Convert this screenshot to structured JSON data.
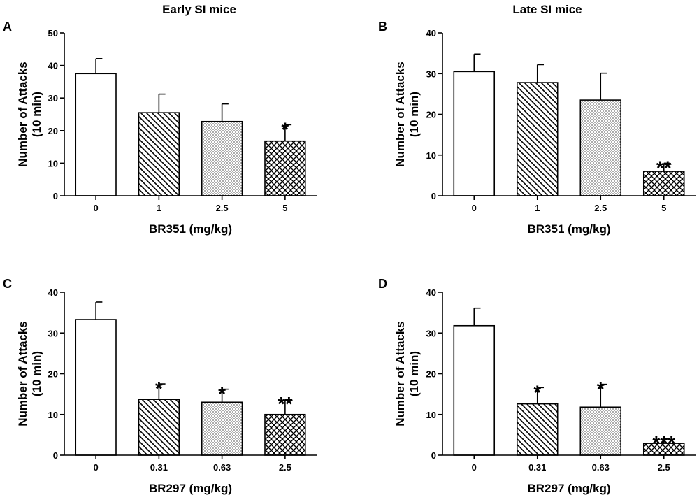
{
  "column_titles": [
    "Early SI mice",
    "Late SI mice"
  ],
  "chart_data": [
    {
      "panel": "A",
      "type": "bar",
      "ylabel_line1": "Number of Attacks",
      "ylabel_line2": "(10 min)",
      "xlabel": "BR351 (mg/kg)",
      "ylim": [
        0,
        50
      ],
      "yticks": [
        0,
        10,
        20,
        30,
        40,
        50
      ],
      "categories": [
        "0",
        "1",
        "2.5",
        "5"
      ],
      "values": [
        37.5,
        25.5,
        22.8,
        16.8
      ],
      "errors": [
        4.6,
        5.7,
        5.4,
        5.0
      ],
      "patterns": [
        "none",
        "diag",
        "dots",
        "cross"
      ],
      "significance": [
        "",
        "",
        "",
        "*"
      ]
    },
    {
      "panel": "B",
      "type": "bar",
      "ylabel_line1": "Number of Attacks",
      "ylabel_line2": "(10 min)",
      "xlabel": "BR351 (mg/kg)",
      "ylim": [
        0,
        40
      ],
      "yticks": [
        0,
        10,
        20,
        30,
        40
      ],
      "categories": [
        "0",
        "1",
        "2.5",
        "5"
      ],
      "values": [
        30.5,
        27.8,
        23.5,
        6.0
      ],
      "errors": [
        4.3,
        4.4,
        6.6,
        2.0
      ],
      "patterns": [
        "none",
        "diag",
        "dots",
        "cross"
      ],
      "significance": [
        "",
        "",
        "",
        "**"
      ]
    },
    {
      "panel": "C",
      "type": "bar",
      "ylabel_line1": "Number of Attacks",
      "ylabel_line2": "(10 min)",
      "xlabel": "BR297 (mg/kg)",
      "ylim": [
        0,
        40
      ],
      "yticks": [
        0,
        10,
        20,
        30,
        40
      ],
      "categories": [
        "0",
        "0.31",
        "0.63",
        "2.5"
      ],
      "values": [
        33.3,
        13.7,
        13.0,
        10.0
      ],
      "errors": [
        4.3,
        3.8,
        3.2,
        3.7
      ],
      "patterns": [
        "none",
        "diag",
        "dots",
        "cross"
      ],
      "significance": [
        "",
        "*",
        "*",
        "**"
      ]
    },
    {
      "panel": "D",
      "type": "bar",
      "ylabel_line1": "Number of Attacks",
      "ylabel_line2": "(10 min)",
      "xlabel": "BR297 (mg/kg)",
      "ylim": [
        0,
        40
      ],
      "yticks": [
        0,
        10,
        20,
        30,
        40
      ],
      "categories": [
        "0",
        "0.31",
        "0.63",
        "2.5"
      ],
      "values": [
        31.8,
        12.6,
        11.8,
        2.9
      ],
      "errors": [
        4.3,
        4.0,
        5.6,
        1.2
      ],
      "patterns": [
        "none",
        "diag",
        "dots",
        "cross"
      ],
      "significance": [
        "",
        "*",
        "*",
        "***"
      ]
    }
  ]
}
